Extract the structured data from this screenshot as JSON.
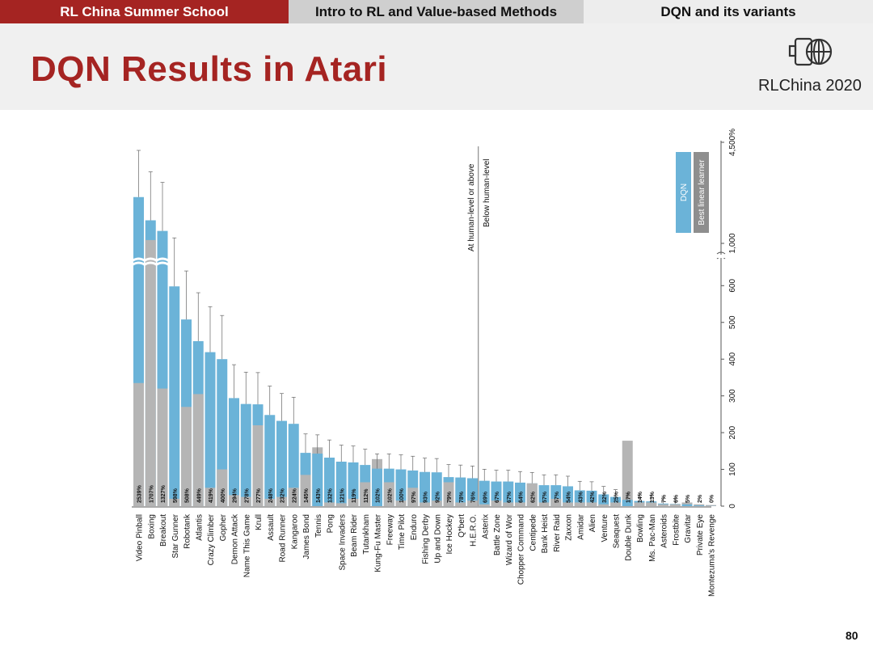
{
  "nav": {
    "tabs": [
      {
        "label": "RL China Summer School"
      },
      {
        "label": "Intro to RL and Value-based Methods"
      },
      {
        "label": "DQN and its variants"
      }
    ]
  },
  "header": {
    "title": "DQN Results in Atari",
    "logo_text": "RLChina 2020",
    "logo_icon": "rlchina-logo-icon"
  },
  "page_number": "80",
  "colors": {
    "accent": "#a52422",
    "dqn": "#6bb3d8",
    "linear": "#b5b5b5"
  },
  "chart_data": {
    "type": "bar",
    "orientation": "rotated-90",
    "title": "",
    "xlabel": "",
    "ylabel": "",
    "y_ticks": [
      "0",
      "100",
      "200",
      "300",
      "400",
      "500",
      "600",
      "1,000",
      "4,500%"
    ],
    "y_break_between": [
      "600",
      "1,000"
    ],
    "grid": false,
    "legend": {
      "placement": "top-right",
      "entries": [
        "DQN",
        "Best linear learner"
      ]
    },
    "annotations": [
      "At human-level or above",
      "Below human-level"
    ],
    "human_level_split_after": "H.E.R.O.",
    "categories": [
      "Video Pinball",
      "Boxing",
      "Breakout",
      "Star Gunner",
      "Robotank",
      "Atlantis",
      "Crazy Climber",
      "Gopher",
      "Demon Attack",
      "Name This Game",
      "Krull",
      "Assault",
      "Road Runner",
      "Kangaroo",
      "James Bond",
      "Tennis",
      "Pong",
      "Space Invaders",
      "Beam Rider",
      "Tutankham",
      "Kung-Fu Master",
      "Freeway",
      "Time Pilot",
      "Enduro",
      "Fishing Derby",
      "Up and Down",
      "Ice Hockey",
      "Q*bert",
      "H.E.R.O.",
      "Asterix",
      "Battle Zone",
      "Wizard of Wor",
      "Chopper Command",
      "Centipede",
      "Bank Heist",
      "River Raid",
      "Zaxxon",
      "Amidar",
      "Alien",
      "Venture",
      "Seaquest",
      "Double Dunk",
      "Bowling",
      "Ms. Pac-Man",
      "Asteroids",
      "Frostbite",
      "Gravitar",
      "Private Eye",
      "Montezuma's Revenge"
    ],
    "value_labels": [
      "2539%",
      "1707%",
      "1327%",
      "598%",
      "508%",
      "449%",
      "419%",
      "400%",
      "294%",
      "278%",
      "277%",
      "248%",
      "232%",
      "224%",
      "145%",
      "143%",
      "132%",
      "121%",
      "119%",
      "112%",
      "102%",
      "102%",
      "100%",
      "97%",
      "93%",
      "92%",
      "79%",
      "78%",
      "76%",
      "69%",
      "67%",
      "67%",
      "64%",
      "62%",
      "57%",
      "57%",
      "54%",
      "43%",
      "42%",
      "32%",
      "25%",
      "17%",
      "14%",
      "13%",
      "7%",
      "6%",
      "5%",
      "2%",
      "0%"
    ],
    "series": [
      {
        "name": "DQN",
        "values": [
          2539,
          1707,
          1327,
          598,
          508,
          449,
          419,
          400,
          294,
          278,
          277,
          248,
          232,
          224,
          145,
          143,
          132,
          121,
          119,
          112,
          102,
          102,
          100,
          97,
          93,
          92,
          79,
          78,
          76,
          69,
          67,
          67,
          64,
          62,
          57,
          57,
          54,
          43,
          42,
          32,
          25,
          17,
          14,
          13,
          7,
          6,
          5,
          2,
          0
        ]
      },
      {
        "name": "Best linear learner",
        "values": [
          335,
          1000,
          320,
          20,
          270,
          305,
          50,
          100,
          30,
          25,
          220,
          20,
          25,
          50,
          85,
          160,
          10,
          8,
          20,
          65,
          128,
          65,
          15,
          50,
          10,
          15,
          65,
          10,
          15,
          5,
          15,
          10,
          10,
          62,
          10,
          20,
          10,
          10,
          10,
          5,
          10,
          178,
          10,
          10,
          5,
          5,
          10,
          5,
          3
        ]
      }
    ]
  }
}
